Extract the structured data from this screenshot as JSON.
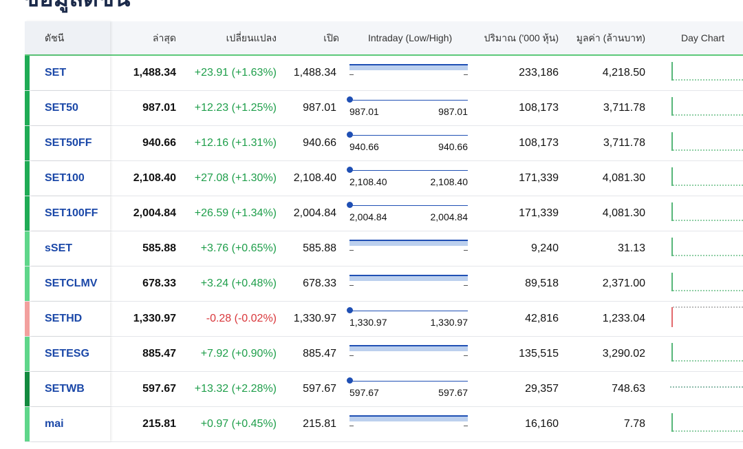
{
  "page": {
    "title": "ข้อมูลดัชนี"
  },
  "header": {
    "index": "ดัชนี",
    "last": "ล่าสุด",
    "change": "เปลี่ยนแปลง",
    "open": "เปิด",
    "intraday": "Intraday (Low/High)",
    "volume": "ปริมาณ ('000 หุ้น)",
    "value": "มูลค่า (ล้านบาท)",
    "day_chart": "Day Chart"
  },
  "colors": {
    "up": "#1e9e4a",
    "down": "#d9373b",
    "accent": "#1f4fb4",
    "name": "#1b48a8"
  },
  "rows": [
    {
      "name": "SET",
      "last": "1,488.34",
      "change": "+23.91 (+1.63%)",
      "dir": "up",
      "open": "1,488.34",
      "intraday_mode": "bar",
      "low": "",
      "high": "",
      "volume": "233,186",
      "value": "4,218.50",
      "bar_color": "#1fab55",
      "chart": "up"
    },
    {
      "name": "SET50",
      "last": "987.01",
      "change": "+12.23 (+1.25%)",
      "dir": "up",
      "open": "987.01",
      "intraday_mode": "point",
      "low": "987.01",
      "high": "987.01",
      "volume": "108,173",
      "value": "3,711.78",
      "bar_color": "#1fab55",
      "chart": "up"
    },
    {
      "name": "SET50FF",
      "last": "940.66",
      "change": "+12.16 (+1.31%)",
      "dir": "up",
      "open": "940.66",
      "intraday_mode": "point",
      "low": "940.66",
      "high": "940.66",
      "volume": "108,173",
      "value": "3,711.78",
      "bar_color": "#1fab55",
      "chart": "up"
    },
    {
      "name": "SET100",
      "last": "2,108.40",
      "change": "+27.08 (+1.30%)",
      "dir": "up",
      "open": "2,108.40",
      "intraday_mode": "point",
      "low": "2,108.40",
      "high": "2,108.40",
      "volume": "171,339",
      "value": "4,081.30",
      "bar_color": "#1fab55",
      "chart": "up"
    },
    {
      "name": "SET100FF",
      "last": "2,004.84",
      "change": "+26.59 (+1.34%)",
      "dir": "up",
      "open": "2,004.84",
      "intraday_mode": "point",
      "low": "2,004.84",
      "high": "2,004.84",
      "volume": "171,339",
      "value": "4,081.30",
      "bar_color": "#1fab55",
      "chart": "up"
    },
    {
      "name": "sSET",
      "last": "585.88",
      "change": "+3.76 (+0.65%)",
      "dir": "up",
      "open": "585.88",
      "intraday_mode": "bar",
      "low": "",
      "high": "",
      "volume": "9,240",
      "value": "31.13",
      "bar_color": "#5fd68a",
      "chart": "up"
    },
    {
      "name": "SETCLMV",
      "last": "678.33",
      "change": "+3.24 (+0.48%)",
      "dir": "up",
      "open": "678.33",
      "intraday_mode": "bar",
      "low": "",
      "high": "",
      "volume": "89,518",
      "value": "2,371.00",
      "bar_color": "#5fd68a",
      "chart": "up"
    },
    {
      "name": "SETHD",
      "last": "1,330.97",
      "change": "-0.28 (-0.02%)",
      "dir": "down",
      "open": "1,330.97",
      "intraday_mode": "point",
      "low": "1,330.97",
      "high": "1,330.97",
      "volume": "42,816",
      "value": "1,233.04",
      "bar_color": "#f2a09e",
      "chart": "down"
    },
    {
      "name": "SETESG",
      "last": "885.47",
      "change": "+7.92 (+0.90%)",
      "dir": "up",
      "open": "885.47",
      "intraday_mode": "bar",
      "low": "",
      "high": "",
      "volume": "135,515",
      "value": "3,290.02",
      "bar_color": "#5fd68a",
      "chart": "up"
    },
    {
      "name": "SETWB",
      "last": "597.67",
      "change": "+13.32 (+2.28%)",
      "dir": "up",
      "open": "597.67",
      "intraday_mode": "point",
      "low": "597.67",
      "high": "597.67",
      "volume": "29,357",
      "value": "748.63",
      "bar_color": "#138a3f",
      "chart": "flat"
    },
    {
      "name": "mai",
      "last": "215.81",
      "change": "+0.97 (+0.45%)",
      "dir": "up",
      "open": "215.81",
      "intraday_mode": "bar",
      "low": "",
      "high": "",
      "volume": "16,160",
      "value": "7.78",
      "bar_color": "#5fd68a",
      "chart": "up"
    }
  ]
}
